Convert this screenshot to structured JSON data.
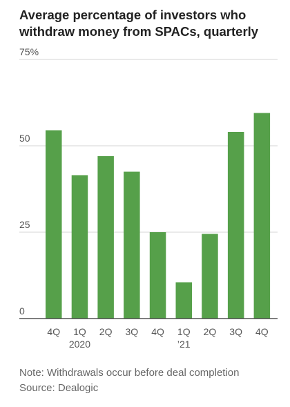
{
  "chart_data": {
    "type": "bar",
    "title": "Average percentage of investors who withdraw money from SPACs, quarterly",
    "categories": [
      "4Q",
      "1Q",
      "2Q",
      "3Q",
      "4Q",
      "1Q",
      "2Q",
      "3Q",
      "4Q"
    ],
    "category_sublabels": [
      "",
      "2020",
      "",
      "",
      "",
      "’21",
      "",
      "",
      ""
    ],
    "values": [
      54.5,
      41.5,
      47,
      42.5,
      25,
      10.5,
      24.5,
      54,
      59.5
    ],
    "y_ticks": [
      {
        "value": 0,
        "label": "0"
      },
      {
        "value": 25,
        "label": "25"
      },
      {
        "value": 50,
        "label": "50"
      },
      {
        "value": 75,
        "label": "75%"
      }
    ],
    "ylim": [
      0,
      75
    ],
    "grid": true,
    "bar_color": "#56a04a",
    "note": "Note: Withdrawals occur before deal completion",
    "source": "Source: Dealogic"
  }
}
